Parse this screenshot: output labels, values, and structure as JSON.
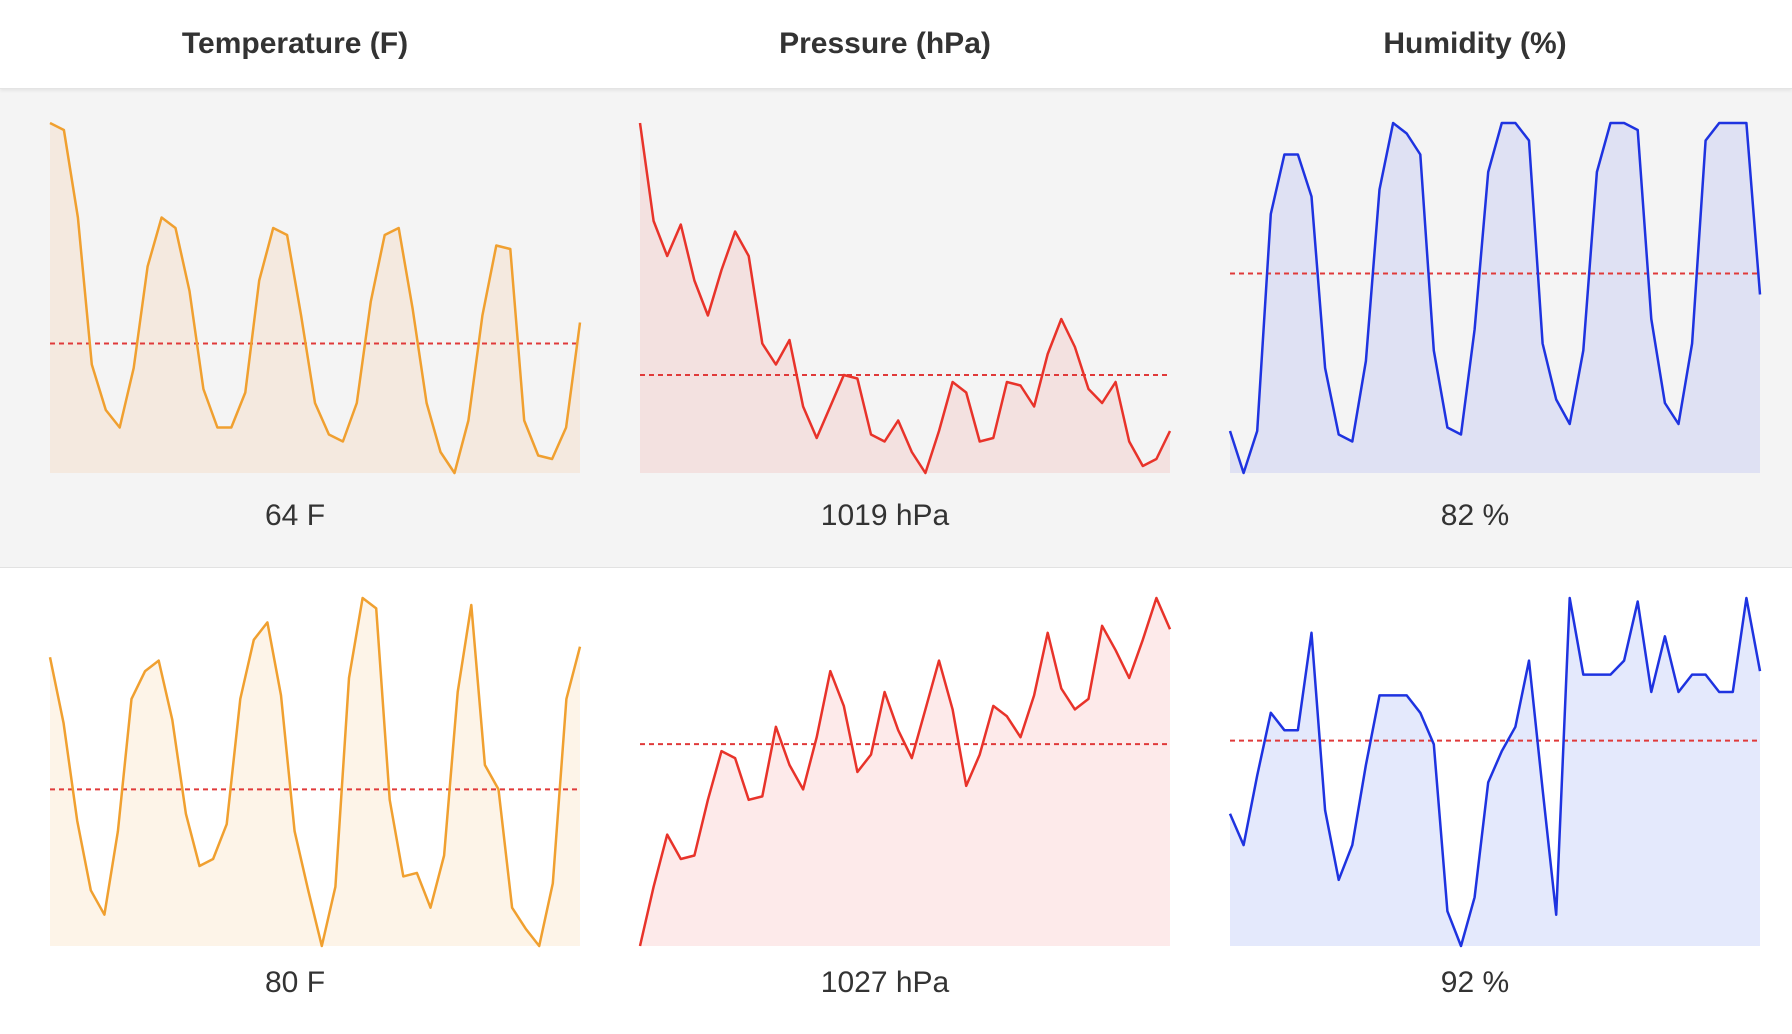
{
  "headers": [
    "Temperature (F)",
    "Pressure (hPa)",
    "Humidity (%)"
  ],
  "rows": [
    {
      "readings": [
        "64 F",
        "1019 hPa",
        "82 %"
      ]
    },
    {
      "readings": [
        "80 F",
        "1027 hPa",
        "92 %"
      ]
    }
  ],
  "chart_data": [
    {
      "type": "area",
      "name": "temperature-row-1",
      "title": "",
      "xlabel": "",
      "ylabel": "",
      "ylim": [
        0,
        1
      ],
      "average": 0.37,
      "line_color": "#f0a030",
      "fill_color": "#f4e9df",
      "values": [
        1.0,
        0.98,
        0.73,
        0.31,
        0.18,
        0.13,
        0.3,
        0.59,
        0.73,
        0.7,
        0.52,
        0.24,
        0.13,
        0.13,
        0.23,
        0.55,
        0.7,
        0.68,
        0.45,
        0.2,
        0.11,
        0.09,
        0.2,
        0.49,
        0.68,
        0.7,
        0.47,
        0.2,
        0.06,
        0.0,
        0.15,
        0.45,
        0.65,
        0.64,
        0.15,
        0.05,
        0.04,
        0.13,
        0.43
      ]
    },
    {
      "type": "area",
      "name": "pressure-row-1",
      "title": "",
      "xlabel": "",
      "ylabel": "",
      "ylim": [
        0,
        1
      ],
      "average": 0.28,
      "line_color": "#e8332a",
      "fill_color": "#f3e1e0",
      "values": [
        1.0,
        0.72,
        0.62,
        0.71,
        0.55,
        0.45,
        0.58,
        0.69,
        0.62,
        0.37,
        0.31,
        0.38,
        0.19,
        0.1,
        0.19,
        0.28,
        0.27,
        0.11,
        0.09,
        0.15,
        0.06,
        0.0,
        0.12,
        0.26,
        0.23,
        0.09,
        0.1,
        0.26,
        0.25,
        0.19,
        0.34,
        0.44,
        0.36,
        0.24,
        0.2,
        0.26,
        0.09,
        0.02,
        0.04,
        0.12
      ]
    },
    {
      "type": "area",
      "name": "humidity-row-1",
      "title": "",
      "xlabel": "",
      "ylabel": "",
      "ylim": [
        0,
        1
      ],
      "average": 0.57,
      "line_color": "#1e33e0",
      "fill_color": "#dfe1f3",
      "values": [
        0.12,
        0.0,
        0.12,
        0.74,
        0.91,
        0.91,
        0.79,
        0.3,
        0.11,
        0.09,
        0.32,
        0.81,
        1.0,
        0.97,
        0.91,
        0.35,
        0.13,
        0.11,
        0.41,
        0.86,
        1.0,
        1.0,
        0.95,
        0.37,
        0.21,
        0.14,
        0.35,
        0.86,
        1.0,
        1.0,
        0.98,
        0.44,
        0.2,
        0.14,
        0.37,
        0.95,
        1.0,
        1.0,
        1.0,
        0.51
      ]
    },
    {
      "type": "area",
      "name": "temperature-row-2",
      "title": "",
      "xlabel": "",
      "ylabel": "",
      "ylim": [
        0,
        1
      ],
      "average": 0.45,
      "line_color": "#f0a030",
      "fill_color": "#fdf4e8",
      "values": [
        0.83,
        0.64,
        0.36,
        0.16,
        0.09,
        0.33,
        0.71,
        0.79,
        0.82,
        0.65,
        0.38,
        0.23,
        0.25,
        0.35,
        0.71,
        0.88,
        0.93,
        0.72,
        0.33,
        0.16,
        0.0,
        0.17,
        0.77,
        1.0,
        0.97,
        0.42,
        0.2,
        0.21,
        0.11,
        0.26,
        0.73,
        0.98,
        0.52,
        0.45,
        0.11,
        0.05,
        0.0,
        0.18,
        0.71,
        0.86
      ]
    },
    {
      "type": "area",
      "name": "pressure-row-2",
      "title": "",
      "xlabel": "",
      "ylabel": "",
      "ylim": [
        0,
        1
      ],
      "average": 0.58,
      "line_color": "#e8332a",
      "fill_color": "#fdeaea",
      "values": [
        0.0,
        0.17,
        0.32,
        0.25,
        0.26,
        0.42,
        0.56,
        0.54,
        0.42,
        0.43,
        0.63,
        0.52,
        0.45,
        0.6,
        0.79,
        0.69,
        0.5,
        0.55,
        0.73,
        0.62,
        0.54,
        0.68,
        0.82,
        0.68,
        0.46,
        0.55,
        0.69,
        0.66,
        0.6,
        0.72,
        0.9,
        0.74,
        0.68,
        0.71,
        0.92,
        0.85,
        0.77,
        0.88,
        1.0,
        0.91
      ]
    },
    {
      "type": "area",
      "name": "humidity-row-2",
      "title": "",
      "xlabel": "",
      "ylabel": "",
      "ylim": [
        0,
        1
      ],
      "average": 0.59,
      "line_color": "#1e33e0",
      "fill_color": "#e4e9fc",
      "values": [
        0.38,
        0.29,
        0.49,
        0.67,
        0.62,
        0.62,
        0.9,
        0.39,
        0.19,
        0.29,
        0.52,
        0.72,
        0.72,
        0.72,
        0.67,
        0.58,
        0.1,
        0.0,
        0.14,
        0.47,
        0.56,
        0.63,
        0.82,
        0.45,
        0.09,
        1.0,
        0.78,
        0.78,
        0.78,
        0.82,
        0.99,
        0.73,
        0.89,
        0.73,
        0.78,
        0.78,
        0.73,
        0.73,
        1.0,
        0.79
      ]
    }
  ]
}
